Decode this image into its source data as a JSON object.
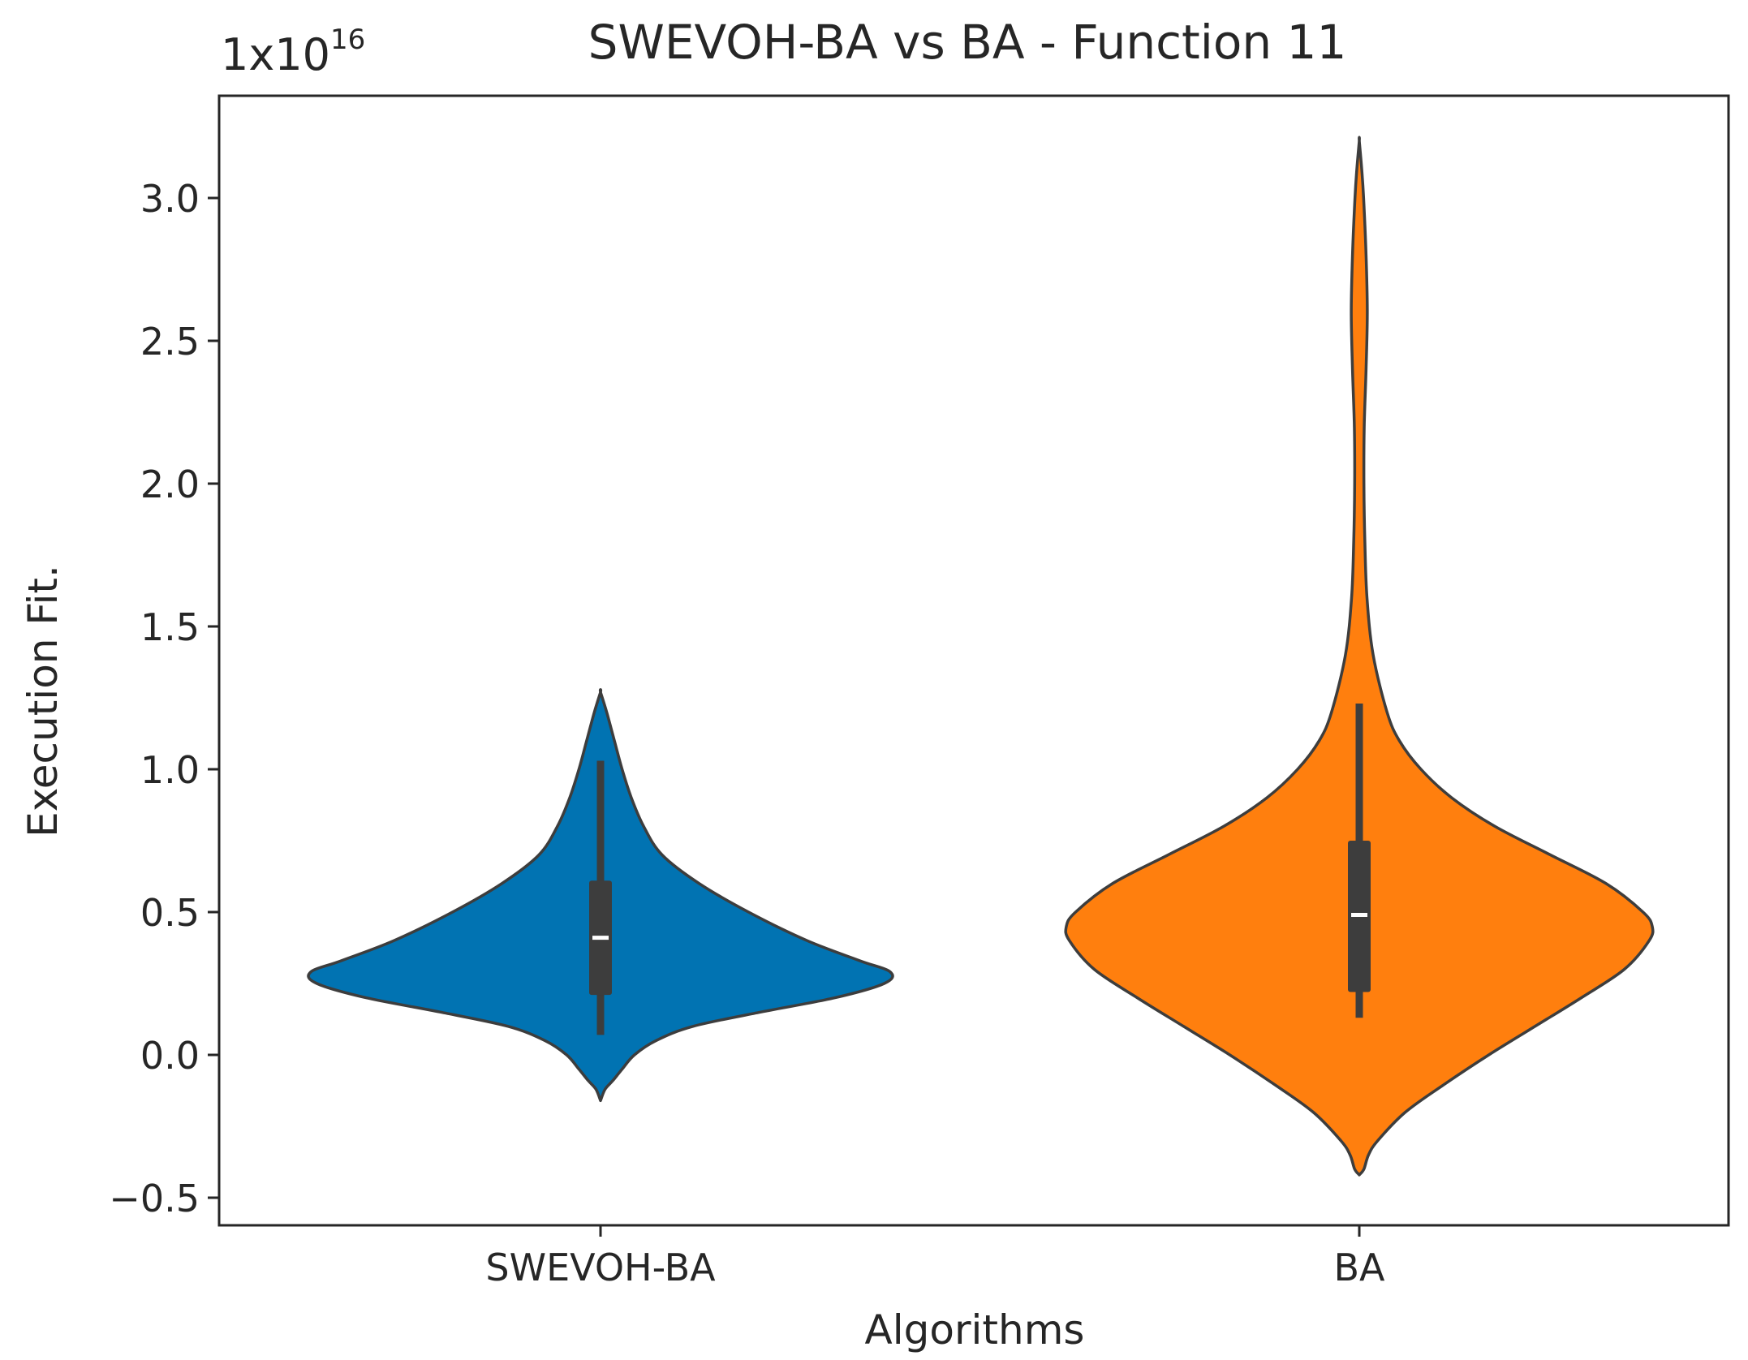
{
  "chart_data": {
    "type": "violin",
    "title": "SWEVOH-BA vs BA - Function 11",
    "xlabel": "Algorithms",
    "ylabel": "Execution Fit.",
    "scale_label": "1x10",
    "scale_exponent": "16",
    "ylim": [
      -0.58,
      3.4
    ],
    "y_ticks": [
      -0.5,
      0.0,
      0.5,
      1.0,
      1.5,
      2.0,
      2.5,
      3.0
    ],
    "y_tick_labels": [
      "−0.5",
      "0.0",
      "0.5",
      "1.0",
      "1.5",
      "2.0",
      "2.5",
      "3.0"
    ],
    "categories": [
      "SWEVOH-BA",
      "BA"
    ],
    "series": [
      {
        "name": "SWEVOH-BA",
        "color": "#0173b2",
        "kde_min": -0.16,
        "kde_max": 1.27,
        "whisker_low": 0.07,
        "q1": 0.21,
        "median": 0.41,
        "q3": 0.61,
        "whisker_high": 1.03,
        "density_profile": [
          [
            -0.16,
            0.0
          ],
          [
            -0.12,
            0.015
          ],
          [
            -0.09,
            0.04
          ],
          [
            -0.05,
            0.07
          ],
          [
            0.0,
            0.11
          ],
          [
            0.05,
            0.18
          ],
          [
            0.1,
            0.3
          ],
          [
            0.15,
            0.52
          ],
          [
            0.2,
            0.76
          ],
          [
            0.25,
            0.92
          ],
          [
            0.29,
            0.94
          ],
          [
            0.33,
            0.84
          ],
          [
            0.4,
            0.67
          ],
          [
            0.5,
            0.48
          ],
          [
            0.6,
            0.32
          ],
          [
            0.7,
            0.2
          ],
          [
            0.8,
            0.14
          ],
          [
            0.9,
            0.1
          ],
          [
            1.0,
            0.07
          ],
          [
            1.1,
            0.045
          ],
          [
            1.2,
            0.02
          ],
          [
            1.27,
            0.0
          ]
        ]
      },
      {
        "name": "BA",
        "color": "#ff7f0e",
        "kde_min": -0.42,
        "kde_max": 3.2,
        "whisker_low": 0.13,
        "q1": 0.22,
        "median": 0.49,
        "q3": 0.75,
        "whisker_high": 1.23,
        "density_profile": [
          [
            -0.42,
            0.0
          ],
          [
            -0.4,
            0.015
          ],
          [
            -0.35,
            0.03
          ],
          [
            -0.3,
            0.06
          ],
          [
            -0.2,
            0.15
          ],
          [
            -0.1,
            0.28
          ],
          [
            0.0,
            0.42
          ],
          [
            0.1,
            0.57
          ],
          [
            0.2,
            0.72
          ],
          [
            0.3,
            0.86
          ],
          [
            0.4,
            0.94
          ],
          [
            0.45,
            0.95
          ],
          [
            0.5,
            0.92
          ],
          [
            0.6,
            0.8
          ],
          [
            0.7,
            0.62
          ],
          [
            0.8,
            0.44
          ],
          [
            0.9,
            0.3
          ],
          [
            1.0,
            0.2
          ],
          [
            1.1,
            0.13
          ],
          [
            1.2,
            0.09
          ],
          [
            1.4,
            0.045
          ],
          [
            1.6,
            0.025
          ],
          [
            1.8,
            0.018
          ],
          [
            2.0,
            0.015
          ],
          [
            2.2,
            0.016
          ],
          [
            2.4,
            0.022
          ],
          [
            2.6,
            0.026
          ],
          [
            2.8,
            0.022
          ],
          [
            3.0,
            0.014
          ],
          [
            3.1,
            0.008
          ],
          [
            3.2,
            0.0
          ]
        ]
      }
    ]
  }
}
